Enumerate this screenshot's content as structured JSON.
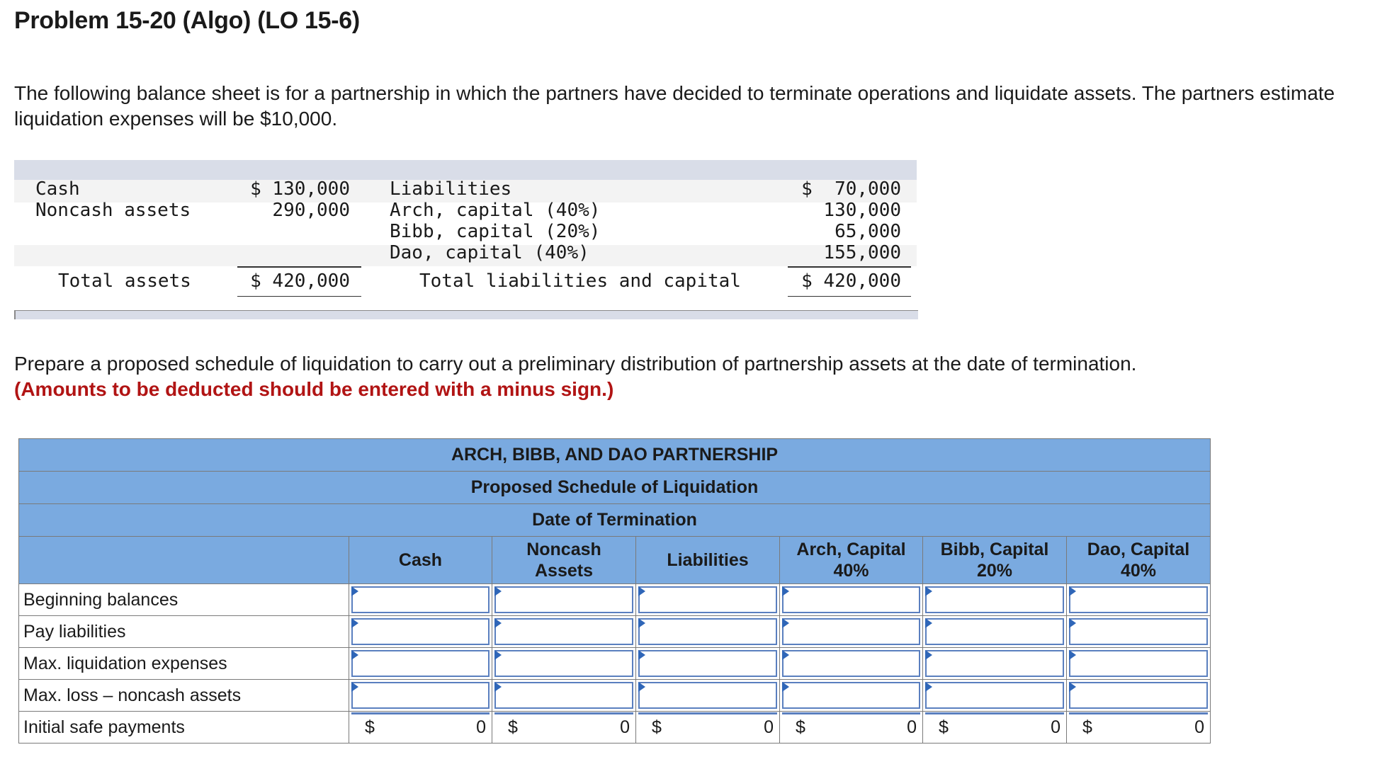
{
  "title": "Problem 15-20 (Algo) (LO 15-6)",
  "intro": "The following balance sheet is for a partnership in which the partners have decided to terminate operations and liquidate assets. The partners estimate liquidation expenses will be $10,000.",
  "balance_sheet": {
    "assets": [
      {
        "label": "Cash",
        "amount": "$ 130,000"
      },
      {
        "label": "Noncash assets",
        "amount": "290,000"
      }
    ],
    "total_assets": {
      "label": "Total assets",
      "amount": "$ 420,000"
    },
    "claims": [
      {
        "label": "Liabilities",
        "amount": "$  70,000"
      },
      {
        "label": "Arch, capital (40%)",
        "amount": "130,000"
      },
      {
        "label": "Bibb, capital (20%)",
        "amount": "65,000"
      },
      {
        "label": "Dao, capital (40%)",
        "amount": "155,000"
      }
    ],
    "total_claims": {
      "label": "Total liabilities and capital",
      "amount": "$ 420,000"
    }
  },
  "prompt": "Prepare a proposed schedule of liquidation to carry out a preliminary distribution of partnership assets at the date of termination.",
  "prompt_note": "(Amounts to be deducted should be entered with a minus sign.)",
  "schedule": {
    "header1": "ARCH, BIBB, AND DAO PARTNERSHIP",
    "header2": "Proposed Schedule of Liquidation",
    "header3": "Date of Termination",
    "columns": [
      {
        "line1": "Cash",
        "line2": ""
      },
      {
        "line1": "Noncash",
        "line2": "Assets"
      },
      {
        "line1": "Liabilities",
        "line2": ""
      },
      {
        "line1": "Arch, Capital",
        "line2": "40%"
      },
      {
        "line1": "Bibb, Capital",
        "line2": "20%"
      },
      {
        "line1": "Dao, Capital",
        "line2": "40%"
      }
    ],
    "rows": [
      "Beginning balances",
      "Pay liabilities",
      "Max. liquidation expenses",
      "Max. loss – noncash assets"
    ],
    "total_row": {
      "label": "Initial safe payments",
      "currency": "$",
      "values": [
        "0",
        "0",
        "0",
        "0",
        "0",
        "0"
      ]
    }
  }
}
